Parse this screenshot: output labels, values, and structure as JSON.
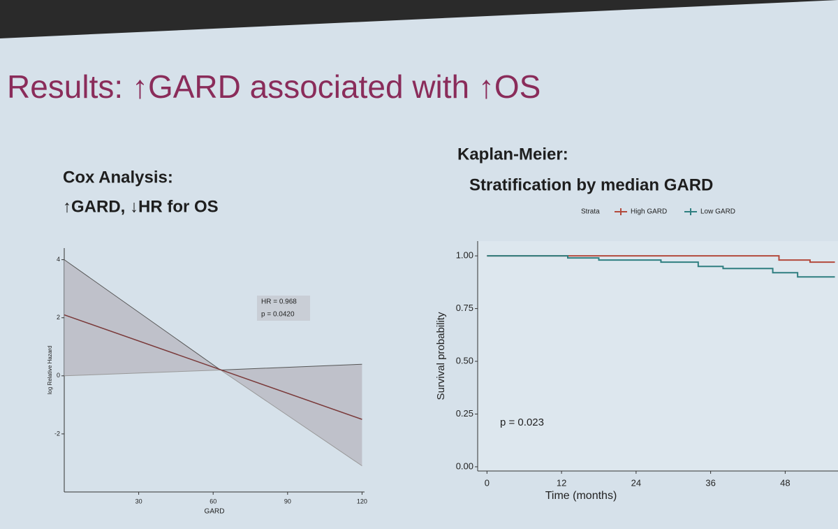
{
  "slide": {
    "title": "Results: ↑GARD associated with ↑OS"
  },
  "chart_data": [
    {
      "type": "line",
      "title": "Cox Analysis:",
      "subtitle": "↑GARD, ↓HR for OS",
      "x_label": "GARD",
      "y_label": "log Relative Hazard",
      "x": [
        0,
        63,
        120
      ],
      "series": [
        {
          "color": "#7a3a3a",
          "values": [
            2.1,
            0.21,
            -1.5
          ]
        }
      ],
      "band": {
        "color": "#b9b9c2",
        "upper": [
          4,
          0.2,
          0.4
        ],
        "lower": [
          0,
          0.2,
          -3.1
        ]
      },
      "xlim": [
        0,
        121
      ],
      "ylim": [
        -4,
        4.4
      ],
      "xticks": [
        30,
        60,
        90,
        120
      ],
      "yticks": [
        -2,
        0,
        2,
        4
      ],
      "annotations": [
        "HR = 0.968",
        "p = 0.0420"
      ]
    },
    {
      "type": "step",
      "title": "Kaplan-Meier:",
      "subtitle": "Stratification by median GARD",
      "x_label": "Time (months)",
      "y_label": "Survival probability",
      "legend_title": "Strata",
      "series": [
        {
          "name": "High GARD",
          "color": "#b34a3c",
          "x": [
            0,
            47,
            52,
            56
          ],
          "values": [
            1.0,
            0.98,
            0.97,
            0.97
          ]
        },
        {
          "name": "Low GARD",
          "color": "#2f7f80",
          "x": [
            0,
            13,
            18,
            28,
            34,
            38,
            46,
            50,
            56
          ],
          "values": [
            1.0,
            0.99,
            0.98,
            0.97,
            0.95,
            0.94,
            0.92,
            0.9,
            0.9
          ]
        }
      ],
      "xlim": [
        -1.5,
        56.5
      ],
      "ylim": [
        -0.02,
        1.07
      ],
      "xticks": [
        0,
        12,
        24,
        36,
        48
      ],
      "yticks": [
        {
          "value": 0,
          "label": "0.00"
        },
        {
          "value": 0.25,
          "label": "0.25"
        },
        {
          "value": 0.5,
          "label": "0.50"
        },
        {
          "value": 0.75,
          "label": "0.75"
        },
        {
          "value": 1,
          "label": "1.00"
        }
      ],
      "annotations": [
        "p = 0.023"
      ]
    }
  ]
}
